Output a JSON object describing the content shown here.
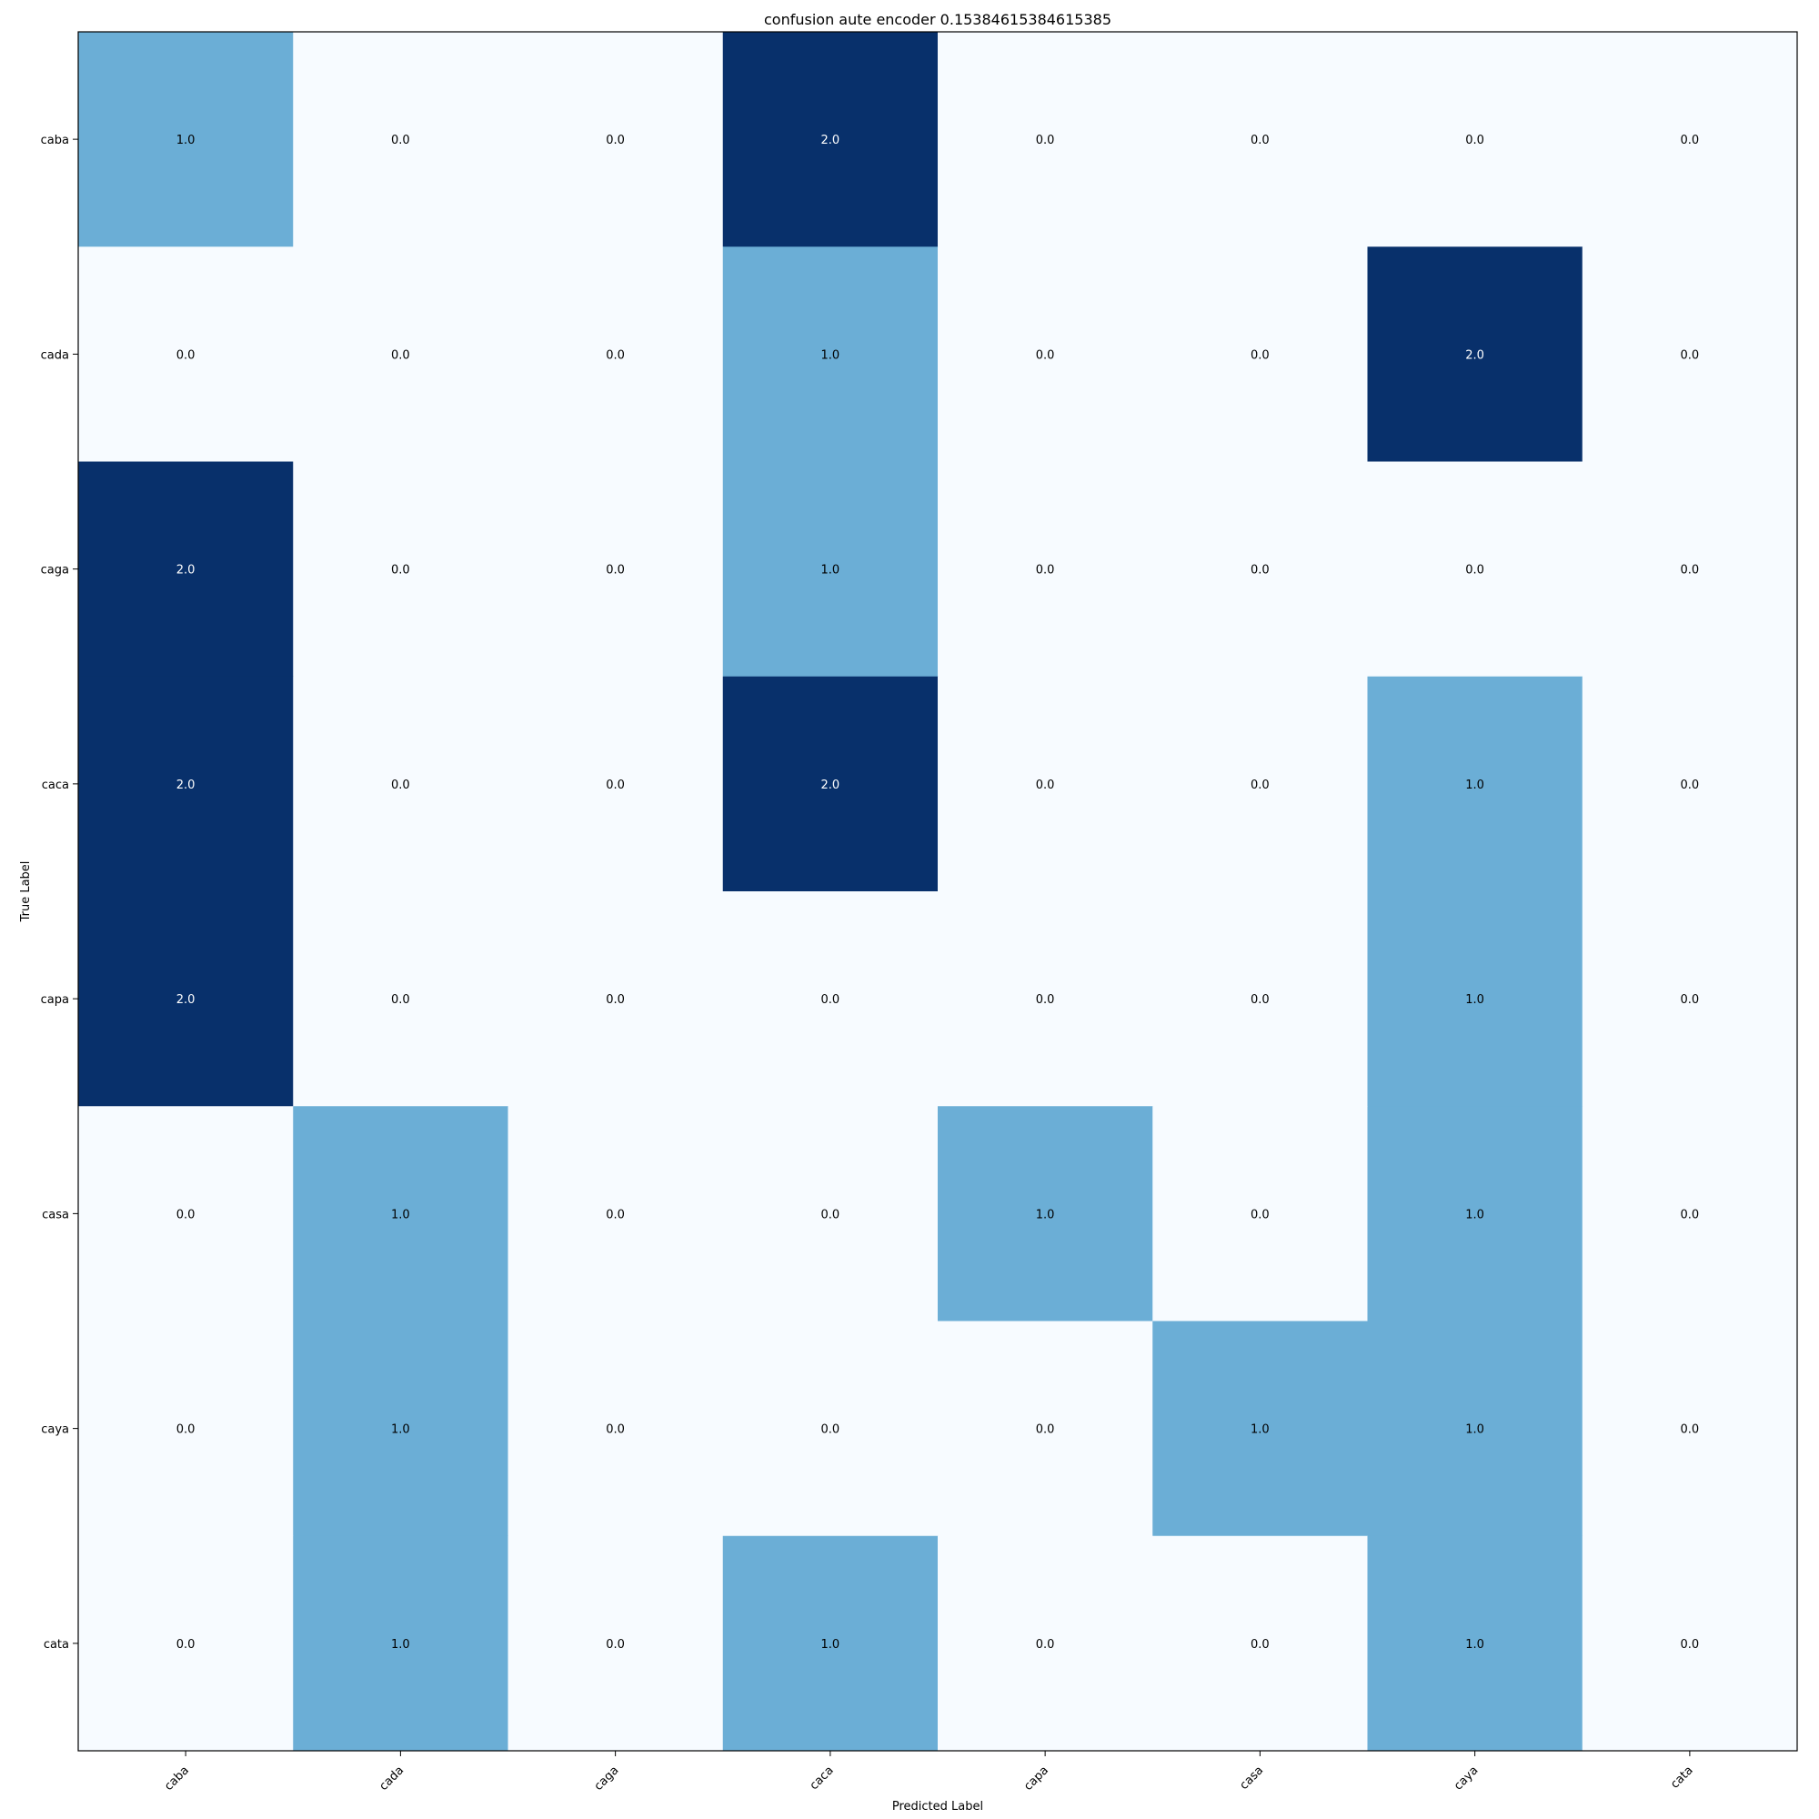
{
  "chart_data": {
    "type": "heatmap",
    "title": "confusion aute encoder 0.15384615384615385",
    "xlabel": "Predicted Label",
    "ylabel": "True Label",
    "x_categories": [
      "caba",
      "cada",
      "caga",
      "caca",
      "capa",
      "casa",
      "caya",
      "cata"
    ],
    "y_categories": [
      "caba",
      "cada",
      "caga",
      "caca",
      "capa",
      "casa",
      "caya",
      "cata"
    ],
    "values": [
      [
        1.0,
        0.0,
        0.0,
        2.0,
        0.0,
        0.0,
        0.0,
        0.0
      ],
      [
        0.0,
        0.0,
        0.0,
        1.0,
        0.0,
        0.0,
        2.0,
        0.0
      ],
      [
        2.0,
        0.0,
        0.0,
        1.0,
        0.0,
        0.0,
        0.0,
        0.0
      ],
      [
        2.0,
        0.0,
        0.0,
        2.0,
        0.0,
        0.0,
        1.0,
        0.0
      ],
      [
        2.0,
        0.0,
        0.0,
        0.0,
        0.0,
        0.0,
        1.0,
        0.0
      ],
      [
        0.0,
        1.0,
        0.0,
        0.0,
        1.0,
        0.0,
        1.0,
        0.0
      ],
      [
        0.0,
        1.0,
        0.0,
        0.0,
        0.0,
        1.0,
        1.0,
        0.0
      ],
      [
        0.0,
        1.0,
        0.0,
        1.0,
        0.0,
        0.0,
        1.0,
        0.0
      ]
    ],
    "value_range": [
      0,
      2
    ],
    "colormap": "Blues",
    "colors": {
      "low": "#f7fbff",
      "mid": "#6baed6",
      "high": "#08306b"
    }
  }
}
